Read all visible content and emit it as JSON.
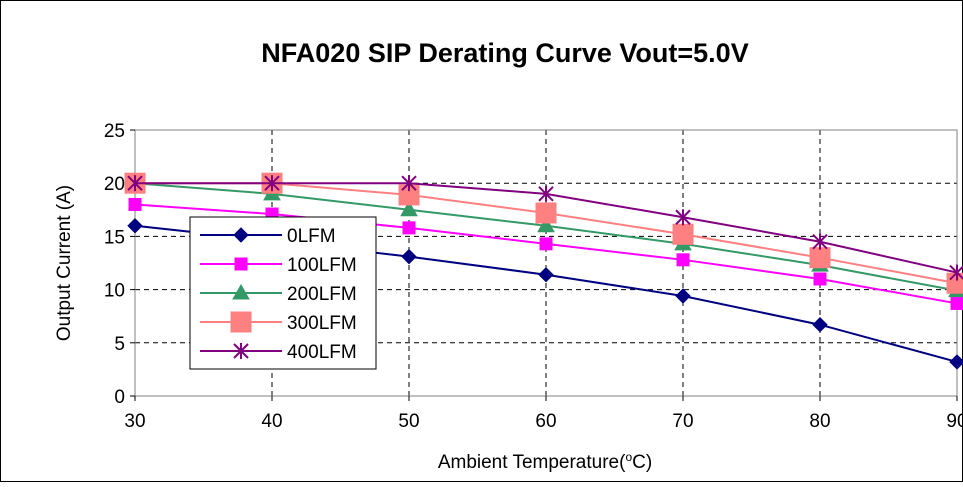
{
  "chart_data": {
    "type": "line",
    "title": "NFA020 SIP Derating Curve Vout=5.0V",
    "xlabel": "Ambient Temperature(oC)",
    "ylabel": "Output Current (A)",
    "x": [
      30,
      40,
      50,
      60,
      70,
      80,
      90
    ],
    "xlim": [
      30,
      90
    ],
    "ylim": [
      0,
      25
    ],
    "x_ticks": [
      "30",
      "40",
      "50",
      "60",
      "70",
      "80",
      "90"
    ],
    "y_ticks": [
      "0",
      "5",
      "10",
      "15",
      "20",
      "25"
    ],
    "grid": true,
    "legend_position": "left-middle",
    "series": [
      {
        "name": "0LFM",
        "color": "#000080",
        "marker": "diamond",
        "values": [
          16.0,
          14.6,
          13.1,
          11.4,
          9.4,
          6.7,
          3.2
        ]
      },
      {
        "name": "100LFM",
        "color": "#ff00ff",
        "marker": "square",
        "values": [
          18.0,
          17.1,
          15.8,
          14.3,
          12.8,
          11.0,
          8.7
        ]
      },
      {
        "name": "200LFM",
        "color": "#339966",
        "marker": "triangle",
        "values": [
          20.0,
          19.0,
          17.5,
          16.0,
          14.3,
          12.3,
          9.9
        ]
      },
      {
        "name": "300LFM",
        "color": "#ff8080",
        "marker": "big-square",
        "values": [
          20.0,
          20.0,
          18.9,
          17.2,
          15.2,
          13.0,
          10.6
        ]
      },
      {
        "name": "400LFM",
        "color": "#800080",
        "marker": "asterisk",
        "values": [
          20.0,
          20.0,
          20.0,
          19.0,
          16.8,
          14.5,
          11.6
        ]
      }
    ]
  }
}
